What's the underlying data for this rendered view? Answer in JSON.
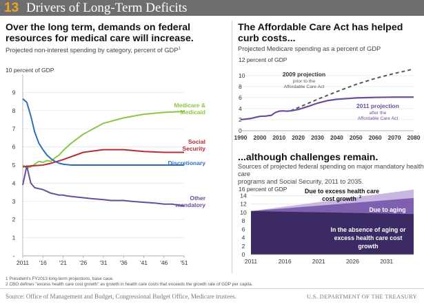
{
  "header": {
    "number": "13",
    "title": "Drivers of Long-Term Deficits"
  },
  "left": {
    "heading_line1": "Over the long term, demands on federal",
    "heading_line2": "resources for medical care will increase.",
    "subtitle": "Projected non-interest spending by category, percent of GDP",
    "subtitle_sup": "1"
  },
  "right_top": {
    "heading_line1": "The Affordable Care Act has helped",
    "heading_line2": "curb costs...",
    "subtitle": "Projected Medicare spending as a percent of GDP"
  },
  "right_bottom": {
    "heading": "...although challenges remain.",
    "subtitle_line1": "Sources of projected federal spending on major mandatory health care",
    "subtitle_line2": "programs and Social Security, 2011 to 2035."
  },
  "notes": {
    "note1": "1 President's FY2013 long-term projections, base case.",
    "note2": "2 CBO defines \"excess health care cost growth\" as growth in health care costs that exceeds the growth rate of GDP per capita."
  },
  "footer": {
    "source": "Source: Office of Management and Budget, Congressional Budget Office, Medicare trustees.",
    "dept": "U.S. DEPARTMENT OF THE TREASURY"
  },
  "colors": {
    "header_bg": "#6e6e70",
    "accent": "#f0a81a",
    "green": "#8cc63f",
    "red": "#b52a35",
    "blue": "#2e6db4",
    "purple": "#6a4c9c",
    "dark_purple": "#3b2a63",
    "dashed": "#555555"
  },
  "chart_data": [
    {
      "id": "left",
      "type": "line",
      "ylabel": "10 percent of GDP",
      "ylim": [
        0,
        10
      ],
      "y_ticks": [
        "-",
        "1",
        "2",
        "3",
        "4",
        "5",
        "6",
        "7",
        "8",
        "9"
      ],
      "x_ticks": [
        "2011",
        "'16",
        "'21",
        "'26",
        "'31",
        "'36",
        "'41",
        "'46",
        "'51"
      ],
      "xlim": [
        2011,
        2051
      ],
      "series": [
        {
          "name": "Medicare & Medicaid",
          "label_line1": "Medicare &",
          "label_line2": "Medicaid",
          "color": "#8cc63f",
          "x": [
            2011,
            2012,
            2013,
            2014,
            2015,
            2016,
            2017,
            2018,
            2019,
            2020,
            2021,
            2023,
            2026,
            2031,
            2036,
            2041,
            2046,
            2051
          ],
          "y": [
            5.0,
            4.85,
            4.9,
            5.05,
            5.2,
            5.15,
            5.25,
            5.2,
            5.4,
            5.55,
            5.8,
            6.2,
            6.7,
            7.3,
            7.6,
            7.8,
            7.9,
            7.95
          ]
        },
        {
          "name": "Social Security",
          "label_line1": "Social",
          "label_line2": "Security",
          "color": "#b52a35",
          "x": [
            2011,
            2013,
            2016,
            2018,
            2021,
            2026,
            2031,
            2036,
            2041,
            2046,
            2051
          ],
          "y": [
            4.9,
            4.95,
            5.0,
            5.1,
            5.3,
            5.7,
            5.85,
            5.85,
            5.75,
            5.7,
            5.7
          ]
        },
        {
          "name": "Discretionary",
          "label_line1": "Discretionary",
          "label_line2": "",
          "color": "#2e6db4",
          "x": [
            2011,
            2012,
            2013,
            2014,
            2015,
            2016,
            2017,
            2018,
            2019,
            2020,
            2021,
            2023,
            2026,
            2031,
            2041,
            2051
          ],
          "y": [
            8.65,
            8.45,
            7.7,
            6.8,
            6.2,
            5.85,
            5.55,
            5.35,
            5.2,
            5.1,
            5.05,
            5.0,
            5.0,
            5.0,
            5.0,
            5.0
          ]
        },
        {
          "name": "Other mandatory",
          "label_line1": "Other",
          "label_line2": "mandatory",
          "color": "#6a4c9c",
          "x": [
            2011,
            2012,
            2013,
            2014,
            2015,
            2016,
            2017,
            2018,
            2019,
            2020,
            2021,
            2022,
            2024,
            2026,
            2028,
            2031,
            2033,
            2036,
            2038,
            2041,
            2044,
            2046,
            2048,
            2051
          ],
          "y": [
            3.9,
            4.95,
            4.0,
            3.75,
            3.7,
            3.65,
            3.55,
            3.45,
            3.4,
            3.35,
            3.35,
            3.3,
            3.25,
            3.2,
            3.15,
            3.1,
            3.05,
            3.05,
            3.0,
            2.95,
            2.9,
            2.85,
            2.85,
            2.75
          ]
        }
      ]
    },
    {
      "id": "right-top",
      "type": "line",
      "ylabel": "12 percent of GDP",
      "ylim": [
        0,
        12
      ],
      "y_ticks": [
        "0",
        "2",
        "4",
        "6",
        "8",
        "10"
      ],
      "x_ticks": [
        "1990",
        "2000",
        "2010",
        "2020",
        "2030",
        "2040",
        "2050",
        "2060",
        "2070",
        "2080"
      ],
      "xlim": [
        1990,
        2080
      ],
      "series": [
        {
          "name": "2009 projection",
          "label_line1": "2009 projection",
          "label_line2": "prior to the",
          "label_line3": "Affordable Care Act",
          "color": "#555555",
          "dashed": true,
          "x": [
            2016,
            2020,
            2030,
            2040,
            2050,
            2060,
            2070,
            2080
          ],
          "y": [
            3.6,
            4.2,
            5.7,
            7.1,
            8.4,
            9.5,
            10.4,
            11.2
          ]
        },
        {
          "name": "2011 projection",
          "label_line1": "2011 projection",
          "label_line2": "after the",
          "label_line3": "Affordable Care Act",
          "color": "#6a4c9c",
          "dashed": false,
          "x": [
            1990,
            1995,
            2000,
            2003,
            2006,
            2008,
            2010,
            2012,
            2014,
            2016,
            2020,
            2025,
            2030,
            2035,
            2040,
            2050,
            2060,
            2070,
            2080
          ],
          "y": [
            2.0,
            2.2,
            2.6,
            2.65,
            2.8,
            3.3,
            3.55,
            3.6,
            3.55,
            3.6,
            3.85,
            4.4,
            5.0,
            5.45,
            5.7,
            5.95,
            6.05,
            6.1,
            6.1
          ]
        }
      ]
    },
    {
      "id": "right-bottom",
      "type": "area",
      "ylabel": "16 percent of GDP",
      "ylim": [
        0,
        16
      ],
      "y_ticks": [
        "0",
        "2",
        "4",
        "6",
        "8",
        "10",
        "12",
        "14"
      ],
      "x_ticks": [
        "2011",
        "2016",
        "2021",
        "2026",
        "2031"
      ],
      "xlim": [
        2011,
        2035
      ],
      "series": [
        {
          "name": "In the absence of aging or excess health care cost growth",
          "label_line1": "In the absence of aging or",
          "label_line2": "excess health care cost",
          "label_line3": "growth",
          "color": "#3b2a63",
          "x": [
            2011,
            2035
          ],
          "y": [
            10.3,
            9.6
          ]
        },
        {
          "name": "Due to aging",
          "label_line1": "Due to aging",
          "color": "#7e5fb0",
          "x": [
            2011,
            2035
          ],
          "y": [
            10.3,
            13.4
          ]
        },
        {
          "name": "Due to excess health care cost growth",
          "label_line1": "Due to excess  health care",
          "label_line2": "cost growth",
          "label_sup": "2",
          "color": "#c8b7e0",
          "x": [
            2011,
            2035
          ],
          "y": [
            10.3,
            15.4
          ]
        }
      ]
    }
  ]
}
